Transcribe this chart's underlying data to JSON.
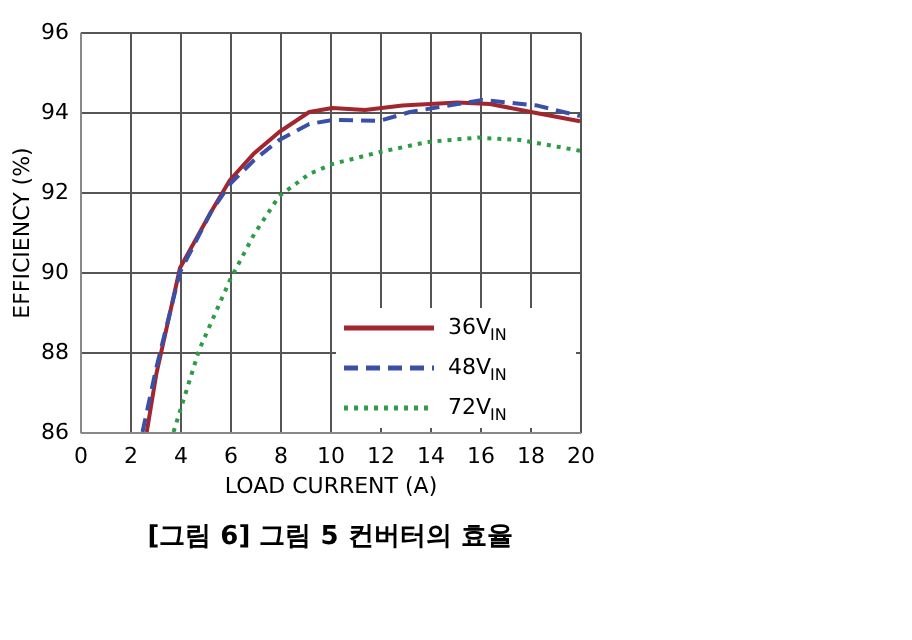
{
  "chart_data": {
    "type": "line",
    "xlabel": "LOAD CURRENT (A)",
    "ylabel": "EFFICIENCY (%)",
    "annotations": [
      "[그림 6] 그림 5 컨버터의 효율"
    ],
    "xlim": [
      0,
      20
    ],
    "xticks": [
      0,
      2,
      4,
      6,
      8,
      10,
      12,
      14,
      16,
      18,
      20
    ],
    "ylim": [
      86,
      96
    ],
    "yticks": [
      86,
      88,
      90,
      92,
      94,
      96
    ],
    "grid": true,
    "legend": "bottom right",
    "marker": "none",
    "series": [
      {
        "name": "36V$_{IN}$",
        "color": "#a3262f",
        "line_style": "solid",
        "x": [
          2.67,
          3.05,
          4.0,
          5.24,
          6.0,
          6.97,
          7.97,
          9.17,
          10.1,
          11.4,
          12.9,
          15.1,
          16.4,
          18.3,
          20
        ],
        "values": [
          86,
          87.44,
          90.1,
          91.5,
          92.3,
          92.97,
          93.5,
          94.0,
          94.1,
          94.05,
          94.16,
          94.24,
          94.2,
          93.97,
          93.77
        ]
      },
      {
        "name": "48V$_{IN}$",
        "color": "#3a4fa8",
        "line_style": "dashed",
        "x": [
          2.5,
          3.05,
          4.0,
          5.24,
          6.0,
          6.97,
          7.97,
          9.17,
          10.1,
          12.0,
          13.2,
          15.1,
          16.1,
          18.3,
          20
        ],
        "values": [
          86,
          87.6,
          90.0,
          91.5,
          92.2,
          92.8,
          93.3,
          93.7,
          93.8,
          93.78,
          94.0,
          94.2,
          94.3,
          94.16,
          93.9
        ]
      },
      {
        "name": "72V$_{IN}$",
        "color": "#2e9b46",
        "line_style": "dotted",
        "x": [
          3.74,
          4.77,
          6.0,
          6.97,
          7.97,
          9.17,
          10.1,
          12.0,
          13.9,
          15.9,
          17.6,
          20
        ],
        "values": [
          86,
          88.06,
          89.8,
          90.95,
          91.9,
          92.45,
          92.7,
          93.0,
          93.25,
          93.36,
          93.3,
          93.03
        ]
      }
    ]
  }
}
